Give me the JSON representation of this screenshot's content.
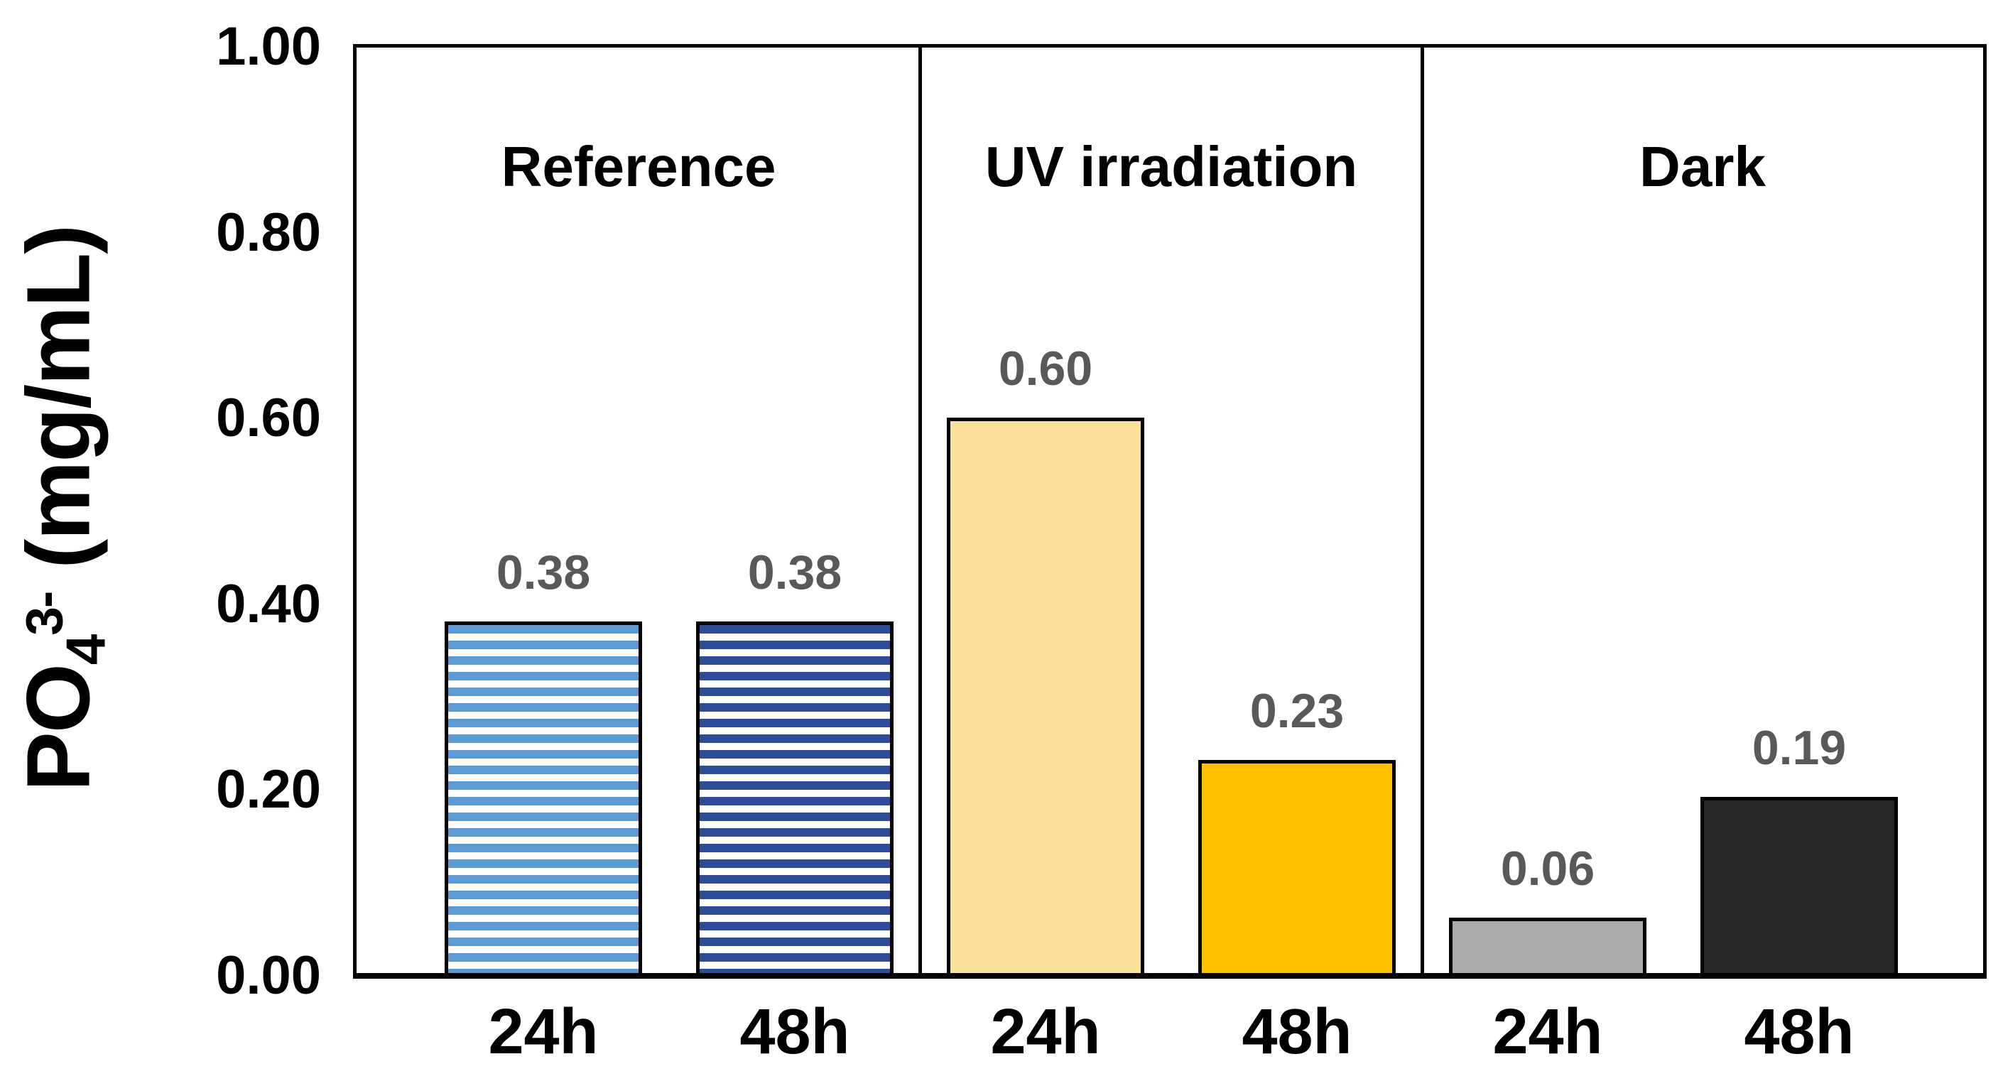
{
  "figure": {
    "background": "#FFFFFF"
  },
  "chart_data": {
    "type": "bar",
    "title": "",
    "ylabel": "PO4(3-) (mg/mL)",
    "ylabel_parts": {
      "base": "PO",
      "sub": "4",
      "sup": "3-",
      "rest": " (mg/mL)"
    },
    "xlabel": "",
    "ylim": [
      0.0,
      1.0
    ],
    "ytick_labels": [
      "1.00",
      "0.80",
      "0.60",
      "0.40",
      "0.20",
      "0.00"
    ],
    "grid": false,
    "legend": false,
    "groups": [
      {
        "label": "Reference",
        "bars": [
          {
            "category": "24h",
            "value": 0.38,
            "value_label": "0.38",
            "pattern": "horizontal-stripes",
            "color": "#5B9BD5",
            "pattern_background": "#FFFFFF"
          },
          {
            "category": "48h",
            "value": 0.38,
            "value_label": "0.38",
            "pattern": "horizontal-stripes",
            "color": "#2C4B99",
            "pattern_background": "#FFFFFF"
          }
        ]
      },
      {
        "label": "UV irradiation",
        "bars": [
          {
            "category": "24h",
            "value": 0.6,
            "value_label": "0.60",
            "pattern": "solid",
            "color": "#FBE098"
          },
          {
            "category": "48h",
            "value": 0.23,
            "value_label": "0.23",
            "pattern": "solid",
            "color": "#FFC000"
          }
        ]
      },
      {
        "label": "Dark",
        "bars": [
          {
            "category": "24h",
            "value": 0.06,
            "value_label": "0.06",
            "pattern": "solid",
            "color": "#ABABAB"
          },
          {
            "category": "48h",
            "value": 0.19,
            "value_label": "0.19",
            "pattern": "solid",
            "color": "#262626"
          }
        ]
      }
    ],
    "styles": {
      "bar_outline_color": "#000000",
      "value_label_color": "#595959",
      "axis_color": "#000000",
      "text_color": "#000000"
    }
  }
}
